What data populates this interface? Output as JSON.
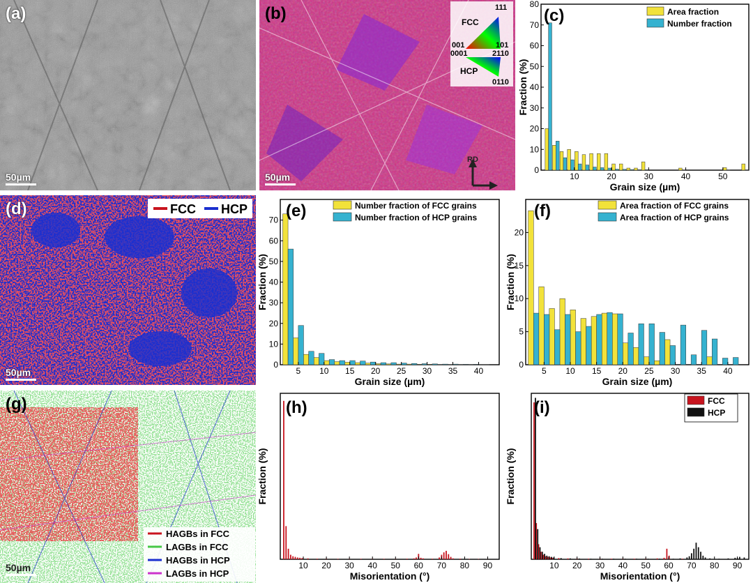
{
  "panel_labels": {
    "a": "(a)",
    "b": "(b)",
    "c": "(c)",
    "d": "(d)",
    "e": "(e)",
    "f": "(f)",
    "g": "(g)",
    "h": "(h)",
    "i": "(i)"
  },
  "scale_bar": "50µm",
  "ipf_key": {
    "fcc": "FCC",
    "hcp": "HCP",
    "f111": "111",
    "f001": "001",
    "f101": "101",
    "h0001": "0001",
    "h2110": "2110",
    "h0110": "0110",
    "rd": "RD"
  },
  "phase_legend": {
    "fcc": "FCC",
    "hcp": "HCP"
  },
  "boundary_legend": [
    "HAGBs in FCC",
    "LAGBs in FCC",
    "HAGBs in HCP",
    "LAGBs in HCP"
  ],
  "colors": {
    "yellow": "#f2e23a",
    "cyan": "#35b2d0",
    "red": "#c8141e",
    "black": "#111111",
    "green": "#46c846",
    "blue": "#1a2fcf",
    "magenta": "#cc33cc"
  },
  "chart_data": [
    {
      "id": "c",
      "type": "bar",
      "xlabel": "Grain size (µm)",
      "ylabel": "Fraction (%)",
      "xlim": [
        1,
        57
      ],
      "ylim": [
        0,
        80
      ],
      "xticks": [
        10,
        20,
        30,
        40,
        50
      ],
      "yticks": [
        0,
        10,
        20,
        30,
        40,
        50,
        60,
        70,
        80
      ],
      "series": [
        {
          "name": "Area fraction",
          "color": "#f2e23a",
          "x": [
            3,
            5,
            7,
            9,
            11,
            13,
            15,
            17,
            19,
            21,
            23,
            25,
            27,
            29,
            39,
            51,
            56
          ],
          "values": [
            20,
            12,
            9,
            10,
            9,
            7.5,
            8,
            8,
            8,
            3,
            3,
            1,
            1,
            4,
            1,
            1.2,
            3
          ]
        },
        {
          "name": "Number fraction",
          "color": "#35b2d0",
          "x": [
            3,
            5,
            7,
            9,
            11,
            13,
            15,
            17,
            19,
            21,
            23,
            25,
            27,
            29,
            39,
            51,
            56
          ],
          "values": [
            71,
            14,
            6,
            5,
            3,
            2.5,
            1.5,
            1.2,
            1,
            0.5,
            0.4,
            0.3,
            0.2,
            0.2,
            0.1,
            0.1,
            0.1
          ]
        }
      ]
    },
    {
      "id": "e",
      "type": "bar",
      "xlabel": "Grain size (µm)",
      "ylabel": "Fraction (%)",
      "xlim": [
        1.5,
        44
      ],
      "ylim": [
        0,
        80
      ],
      "xticks": [
        5,
        10,
        15,
        20,
        25,
        30,
        35,
        40
      ],
      "yticks": [
        0,
        10,
        20,
        30,
        40,
        50,
        60,
        70
      ],
      "series": [
        {
          "name": "Number fraction of FCC grains",
          "color": "#f2e23a",
          "x": [
            3,
            5,
            7,
            9,
            11,
            13,
            15,
            17,
            19,
            21,
            23,
            25,
            27,
            29,
            31,
            33,
            35,
            37,
            39,
            41
          ],
          "values": [
            73,
            13,
            5,
            3.5,
            2,
            1.5,
            1.2,
            1,
            0.8,
            0.5,
            0.4,
            0.3,
            0.3,
            0.2,
            0.2,
            0.1,
            0.1,
            0.1,
            0.1,
            0.1
          ]
        },
        {
          "name": "Number fraction of HCP grains",
          "color": "#35b2d0",
          "x": [
            3,
            5,
            7,
            9,
            11,
            13,
            15,
            17,
            19,
            21,
            23,
            25,
            27,
            29,
            31,
            33,
            35,
            37,
            39,
            41
          ],
          "values": [
            56,
            19,
            6.5,
            5.5,
            2.5,
            2,
            2,
            1.8,
            1.3,
            1,
            1,
            0.8,
            0.6,
            0.5,
            0.4,
            0.3,
            0.3,
            0.2,
            0.2,
            0.1
          ]
        }
      ]
    },
    {
      "id": "f",
      "type": "bar",
      "xlabel": "Grain size (µm)",
      "ylabel": "Fraction (%)",
      "xlim": [
        1.5,
        44
      ],
      "ylim": [
        0,
        25
      ],
      "xticks": [
        5,
        10,
        15,
        20,
        25,
        30,
        35,
        40
      ],
      "yticks": [
        0,
        5,
        10,
        15,
        20
      ],
      "series": [
        {
          "name": "Area fraction of FCC grains",
          "color": "#f2e23a",
          "x": [
            3,
            5,
            7,
            9,
            11,
            13,
            15,
            17,
            19,
            21,
            23,
            25,
            27,
            29,
            31,
            33,
            35,
            37,
            39,
            41
          ],
          "values": [
            23.3,
            11.8,
            8.5,
            10,
            8.3,
            7,
            7.3,
            7.8,
            7.7,
            3.3,
            2.6,
            1.2,
            0.6,
            3.8,
            0,
            0,
            0,
            1.2,
            0,
            0
          ]
        },
        {
          "name": "Area fraction of HCP grains",
          "color": "#35b2d0",
          "x": [
            3,
            5,
            7,
            9,
            11,
            13,
            15,
            17,
            19,
            21,
            23,
            25,
            27,
            29,
            31,
            33,
            35,
            37,
            39,
            41
          ],
          "values": [
            7.8,
            7.6,
            5.3,
            7.6,
            5,
            5.8,
            7.6,
            7.9,
            7.7,
            4.8,
            6.2,
            6.2,
            4.9,
            2.9,
            6,
            1.5,
            5.2,
            3.9,
            1,
            1.1
          ]
        }
      ]
    },
    {
      "id": "h",
      "type": "bar",
      "xlabel": "Misorientation (°)",
      "ylabel": "Fraction (%)",
      "xlim": [
        0,
        95
      ],
      "ylim": [
        0,
        55
      ],
      "xticks": [
        10,
        20,
        30,
        40,
        50,
        60,
        70,
        80,
        90
      ],
      "yticks": [],
      "series": [
        {
          "name": "FCC",
          "color": "#c8141e",
          "x": [
            1.5,
            2.5,
            3.5,
            4.5,
            5.5,
            6.5,
            7.5,
            8.5,
            9.5,
            12,
            16,
            20,
            25,
            30,
            35,
            40,
            45,
            50,
            55,
            58,
            59,
            60,
            61,
            62,
            66,
            69,
            70,
            71,
            72,
            73,
            74,
            75,
            78,
            82,
            86,
            90
          ],
          "values": [
            52.5,
            11,
            3.5,
            1.5,
            1,
            0.8,
            0.6,
            0.5,
            0.4,
            0.3,
            0.2,
            0.2,
            0.15,
            0.15,
            0.15,
            0.15,
            0.15,
            0.15,
            0.2,
            0.3,
            0.6,
            1.8,
            0.5,
            0.3,
            0.2,
            0.6,
            1.5,
            2.3,
            2.8,
            1.7,
            0.8,
            0.3,
            0.2,
            0.1,
            0.1,
            0.05
          ]
        }
      ]
    },
    {
      "id": "i",
      "type": "bar",
      "xlabel": "Misorientation (°)",
      "ylabel": "Fraction (%)",
      "xlim": [
        0,
        95
      ],
      "ylim": [
        0,
        55
      ],
      "xticks": [
        10,
        20,
        30,
        40,
        50,
        60,
        70,
        80,
        90
      ],
      "yticks": [],
      "series": [
        {
          "name": "FCC",
          "color": "#c8141e",
          "x": [
            1.2,
            2.2,
            3.2,
            4.2,
            5.2,
            6.2,
            7.2,
            8.2,
            9.2,
            12,
            16,
            20,
            25,
            30,
            35,
            40,
            45,
            50,
            55,
            58,
            59.2,
            60.2,
            66
          ],
          "values": [
            52,
            12,
            5,
            2.5,
            1.5,
            1,
            0.8,
            0.6,
            0.5,
            0.4,
            0.3,
            0.25,
            0.2,
            0.2,
            0.2,
            0.2,
            0.2,
            0.2,
            0.3,
            0.5,
            3.5,
            1.2,
            0.2
          ]
        },
        {
          "name": "HCP",
          "color": "#111111",
          "x": [
            1.8,
            2.8,
            3.8,
            4.8,
            5.8,
            6.8,
            7.8,
            8.8,
            9.8,
            13,
            17,
            21,
            26,
            31,
            36,
            41,
            46,
            51,
            56,
            62,
            65,
            68,
            69,
            70,
            71,
            72,
            73,
            74,
            75,
            76,
            78,
            82,
            86,
            89,
            90,
            91,
            93
          ],
          "values": [
            53.5,
            10,
            4,
            2.5,
            1.8,
            1.2,
            1,
            0.8,
            0.6,
            0.4,
            0.3,
            0.25,
            0.2,
            0.2,
            0.2,
            0.2,
            0.2,
            0.2,
            0.2,
            0.2,
            0.3,
            0.6,
            1,
            2,
            3.5,
            5.5,
            4,
            2.5,
            1.2,
            0.6,
            0.3,
            0.2,
            0.3,
            0.5,
            0.4,
            0.8,
            0.6
          ]
        }
      ]
    }
  ]
}
